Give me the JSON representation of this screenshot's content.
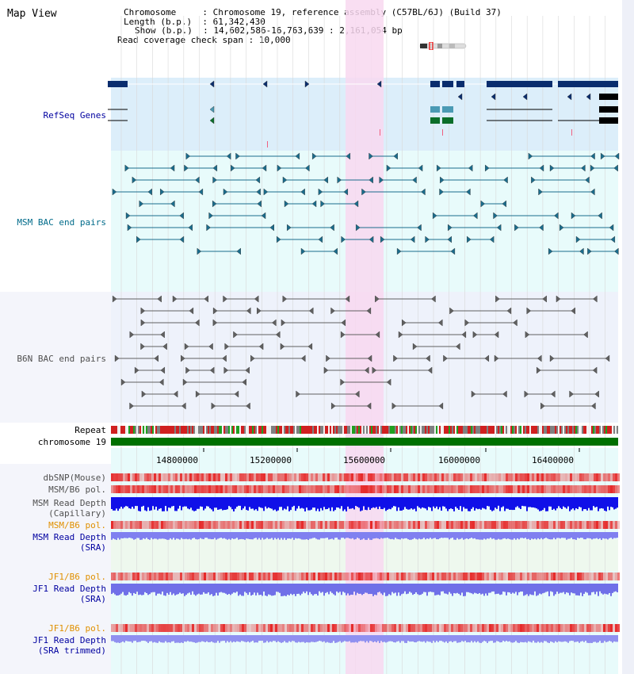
{
  "app": {
    "title": "Map View"
  },
  "info": {
    "chromosome_label": "Chromosome",
    "chromosome_value": "Chromosome 19, reference assembly (C57BL/6J) (Build 37)",
    "length_label": "Length (b.p.)",
    "length_value": "61,342,430",
    "show_label": "Show (b.p.)",
    "show_value": "14,602,586-16,763,639 : 2,161,054 bp",
    "coverage_label": "Read coverage check span",
    "coverage_value": "10,000"
  },
  "tracks": {
    "refseq": "RefSeq Genes",
    "msm_bac": "MSM BAC end pairs",
    "b6n_bac": "B6N BAC end pairs",
    "repeat": "Repeat",
    "chromosome": "chromosome 19",
    "dbsnp": "dbSNP(Mouse)",
    "msm_b6_pol": "MSM/B6 pol.",
    "msm_read_depth_cap_1": "MSM Read Depth",
    "msm_read_depth_cap_2": "(Capillary)",
    "msm_b6_pol_sra": "MSM/B6 pol.",
    "msm_read_depth_sra_1": "MSM Read Depth",
    "msm_read_depth_sra_2": "(SRA)",
    "jf1_b6_pol_1": "JF1/B6 pol.",
    "jf1_read_depth_1": "JF1 Read Depth",
    "jf1_read_depth_1b": "(SRA)",
    "jf1_b6_pol_2": "JF1/B6 pol.",
    "jf1_read_depth_2": "JF1 Read Depth",
    "jf1_read_depth_2b": "(SRA trimmed)"
  },
  "ruler": {
    "ticks": [
      "14800000",
      "15200000",
      "15600000",
      "16000000",
      "16400000"
    ]
  },
  "colors": {
    "refseq_bg": "#dceefa",
    "msm_bg": "#e8fbfb",
    "b6n_bg": "#eef2fb",
    "highlight": "#f8d8f0",
    "gene": "#0a2d6e",
    "msm_line": "#1a6c8c",
    "b6n_line": "#606060",
    "label_blue": "#0000a0",
    "label_orange": "#e09000",
    "label_teal": "#006b8a",
    "label_gray": "#505050"
  }
}
